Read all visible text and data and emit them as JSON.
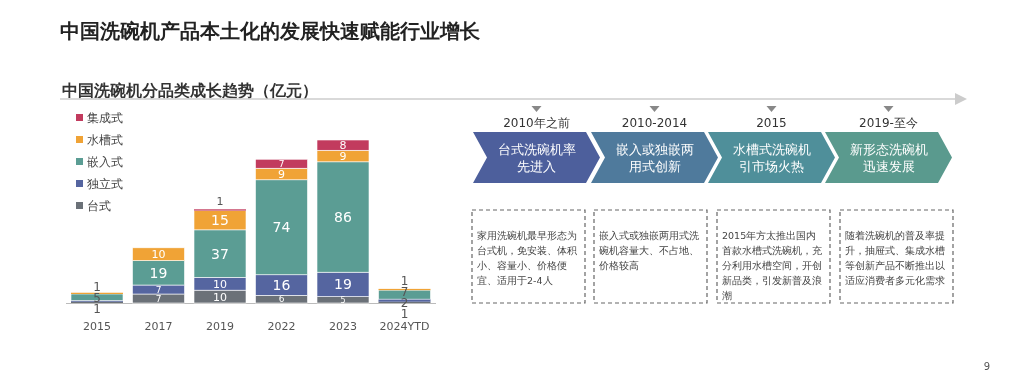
{
  "chart_data": [
    {
      "type": "bar",
      "title": "中国洗碗机产品本土化的发展快速赋能行业增长",
      "subtitle": "中国洗碗机分品类成长趋势（亿元）",
      "categories": [
        "2015",
        "2017",
        "2019",
        "2022",
        "2023",
        "2024YTD"
      ],
      "stacked": true,
      "legend": "top left",
      "series": [
        {
          "name": "台式",
          "color": "#6b7178",
          "values": [
            1,
            7,
            10,
            6,
            5,
            1
          ],
          "value_labels": [
            "1",
            "7",
            "10",
            "6",
            "5",
            "1"
          ]
        },
        {
          "name": "独立式",
          "color": "#5565a0",
          "values": [
            1,
            7,
            10,
            16,
            19,
            2
          ],
          "value_labels": [
            null,
            "7",
            "10",
            "16",
            "19",
            "2"
          ]
        },
        {
          "name": "嵌入式",
          "color": "#5b9d94",
          "values": [
            5,
            19,
            37,
            74,
            86,
            7
          ],
          "value_labels": [
            "5",
            "19",
            "37",
            "74",
            "86",
            "7"
          ]
        },
        {
          "name": "水槽式",
          "color": "#f0a336",
          "values": [
            1,
            10,
            15,
            9,
            9,
            1
          ],
          "value_labels": [
            "1",
            "10",
            "15",
            "9",
            "9",
            "1"
          ]
        },
        {
          "name": "集成式",
          "color": "#c23b5e",
          "values": [
            null,
            null,
            1,
            7,
            8,
            null
          ],
          "value_labels": [
            null,
            null,
            "1",
            "7",
            "8",
            null
          ]
        }
      ],
      "annotations": [
        "9"
      ]
    },
    {
      "type": "other",
      "categories": [
        "2010年之前",
        "2010-2014",
        "2015",
        "2019-至今"
      ],
      "colors": [
        "#4d5f9c",
        "#4f7a9c",
        "#4f8f9a",
        "#5a9a8e"
      ],
      "annotations": [
        "台式洗碗机率先进入",
        "嵌入或独嵌两用式创新",
        "水槽式洗碗机引市场火热",
        "新形态洗碗机迅速发展",
        "家用洗碗机最早形态为台式机，免安装、体积小、容量小、价格便宜、适用于2-4人",
        "嵌入式或独嵌两用式洗碗机容量大、不占地、价格较高",
        "2015年方太推出国内首款水槽式洗碗机，充分利用水槽空间，开创新品类，引发新普及浪潮",
        "随着洗碗机的普及率提升，抽屉式、集成水槽等创新产品不断推出以适应消费者多元化需求"
      ]
    }
  ]
}
